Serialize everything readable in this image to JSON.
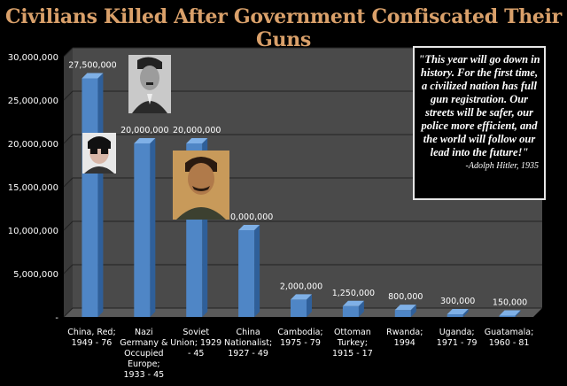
{
  "chart_data": {
    "type": "bar",
    "title": "Civilians Killed After Government Confiscated Their Guns",
    "categories": [
      [
        "China, Red;",
        "1949 - 76"
      ],
      [
        "Nazi",
        "Germany &",
        "Occupied",
        "Europe;",
        "1933 - 45"
      ],
      [
        "Soviet",
        "Union; 1929",
        "- 45"
      ],
      [
        "China",
        "Nationalist;",
        "1927 - 49"
      ],
      [
        "Cambodia;",
        "1975 - 79"
      ],
      [
        "Ottoman",
        "Turkey;",
        "1915 - 17"
      ],
      [
        "Rwanda;",
        "1994"
      ],
      [
        "Uganda;",
        "1971 - 79"
      ],
      [
        "Guatamala;",
        "1960 - 81"
      ]
    ],
    "values": [
      27500000,
      20000000,
      20000000,
      10000000,
      2000000,
      1250000,
      800000,
      300000,
      150000
    ],
    "data_labels": [
      "27,500,000",
      "20,000,000",
      "20,000,000",
      "10,000,000",
      "2,000,000",
      "1,250,000",
      "800,000",
      "300,000",
      "150,000"
    ],
    "ylim": [
      0,
      30000000
    ],
    "yticks": [
      0,
      5000000,
      10000000,
      15000000,
      20000000,
      25000000,
      30000000
    ],
    "ytick_labels": [
      "-",
      "5,000,000",
      "10,000,000",
      "15,000,000",
      "20,000,000",
      "25,000,000",
      "30,000,000"
    ],
    "xlabel": "",
    "ylabel": "",
    "grid": true
  },
  "quote": {
    "text": "\"This year will go down in history. For the first time, a civilized nation has full gun registration. Our streets will be safer, our police more efficient, and the world will follow our lead into the future!\"",
    "attribution": "-Adolph Hitler, 1935"
  },
  "colors": {
    "bar_front": "#4f86c6",
    "bar_top": "#7fb0e6",
    "bar_side": "#2f5f99",
    "title": "#d9a06a",
    "panel": "#4a4a4a"
  }
}
